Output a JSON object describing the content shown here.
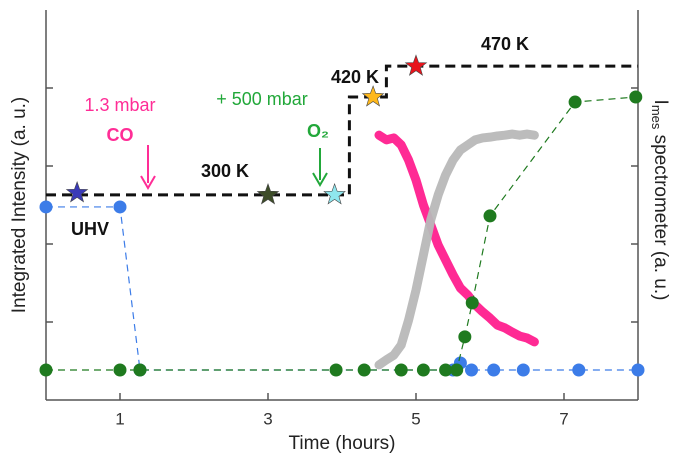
{
  "chart_data": {
    "type": "line",
    "xlabel": "Time (hours)",
    "ylabel": "Integrated Intensity (a. u.)",
    "y2label": {
      "symbol": "I",
      "subscript": "mes",
      "text": " spectrometer (a. u.)"
    },
    "xlim": [
      0,
      8
    ],
    "xticks": [
      1,
      3,
      5,
      7
    ],
    "ylim": [
      0,
      10
    ],
    "yticks": [
      2,
      4,
      6,
      8
    ],
    "series": [
      {
        "style": "dashed",
        "color": "#111111",
        "x": [
          0,
          4.1,
          4.1,
          4.6,
          4.6,
          8
        ],
        "values": [
          5.26,
          5.26,
          7.77,
          7.77,
          8.56,
          8.56
        ]
      },
      {
        "style": "thick",
        "color": "#ff1f8e",
        "x": [
          4.5,
          4.6,
          4.7,
          4.8,
          4.9,
          5.0,
          5.1,
          5.2,
          5.3,
          5.4,
          5.5,
          5.6,
          5.7,
          5.8,
          5.9,
          6.0,
          6.1,
          6.2,
          6.3,
          6.4,
          6.5,
          6.6
        ],
        "values": [
          6.79,
          6.67,
          6.72,
          6.54,
          6.15,
          5.64,
          5.0,
          4.49,
          3.97,
          3.59,
          3.21,
          2.87,
          2.69,
          2.44,
          2.26,
          2.1,
          1.92,
          1.85,
          1.74,
          1.64,
          1.59,
          1.49
        ]
      },
      {
        "style": "thick",
        "color": "#b8b8b8",
        "x": [
          4.5,
          4.6,
          4.7,
          4.8,
          4.9,
          5.0,
          5.1,
          5.2,
          5.3,
          5.4,
          5.5,
          5.6,
          5.7,
          5.8,
          5.9,
          6.0,
          6.1,
          6.2,
          6.3,
          6.4,
          6.5,
          6.6
        ],
        "values": [
          0.9,
          1.03,
          1.15,
          1.41,
          2.05,
          2.82,
          3.72,
          4.62,
          5.26,
          5.77,
          6.15,
          6.41,
          6.54,
          6.67,
          6.72,
          6.74,
          6.77,
          6.79,
          6.82,
          6.79,
          6.82,
          6.79
        ]
      },
      {
        "style": "markers",
        "color": "#3c7ce8",
        "x": [
          0,
          1,
          1.27,
          5.5,
          5.6,
          5.75,
          6.05,
          6.45,
          7.2,
          8.0
        ],
        "values": [
          4.95,
          4.95,
          0.77,
          0.77,
          0.95,
          0.77,
          0.77,
          0.77,
          0.77,
          0.77
        ]
      },
      {
        "style": "markers",
        "color": "#1f7a1f",
        "x": [
          0,
          1,
          1.27,
          3.92,
          4.3,
          4.8,
          5.1,
          5.4,
          5.55,
          5.66,
          5.76,
          6.0,
          7.15,
          7.97
        ],
        "values": [
          0.77,
          0.77,
          0.77,
          0.77,
          0.77,
          0.77,
          0.77,
          0.77,
          0.77,
          1.62,
          2.49,
          4.72,
          7.64,
          7.77
        ]
      }
    ],
    "stars": {
      "x": [
        0.42,
        3.0,
        3.9,
        4.42,
        5.0
      ],
      "values": [
        5.31,
        5.26,
        5.26,
        7.77,
        8.56
      ],
      "colors": [
        "#3a3ab8",
        "#3d4d28",
        "#8fe6ee",
        "#ffb81c",
        "#e8141c"
      ]
    },
    "annotations": [
      {
        "text": "UHV",
        "color": "#111111"
      },
      {
        "text": "1.3 mbar",
        "color": "#ff2d96"
      },
      {
        "text": "CO",
        "color": "#ff2d96"
      },
      {
        "text": "300 K",
        "color": "#111111"
      },
      {
        "text": "+ 500 mbar",
        "color": "#22a83a"
      },
      {
        "text": "O₂",
        "color": "#22a83a"
      },
      {
        "text": "420 K",
        "color": "#111111"
      },
      {
        "text": "470 K",
        "color": "#111111"
      }
    ]
  }
}
